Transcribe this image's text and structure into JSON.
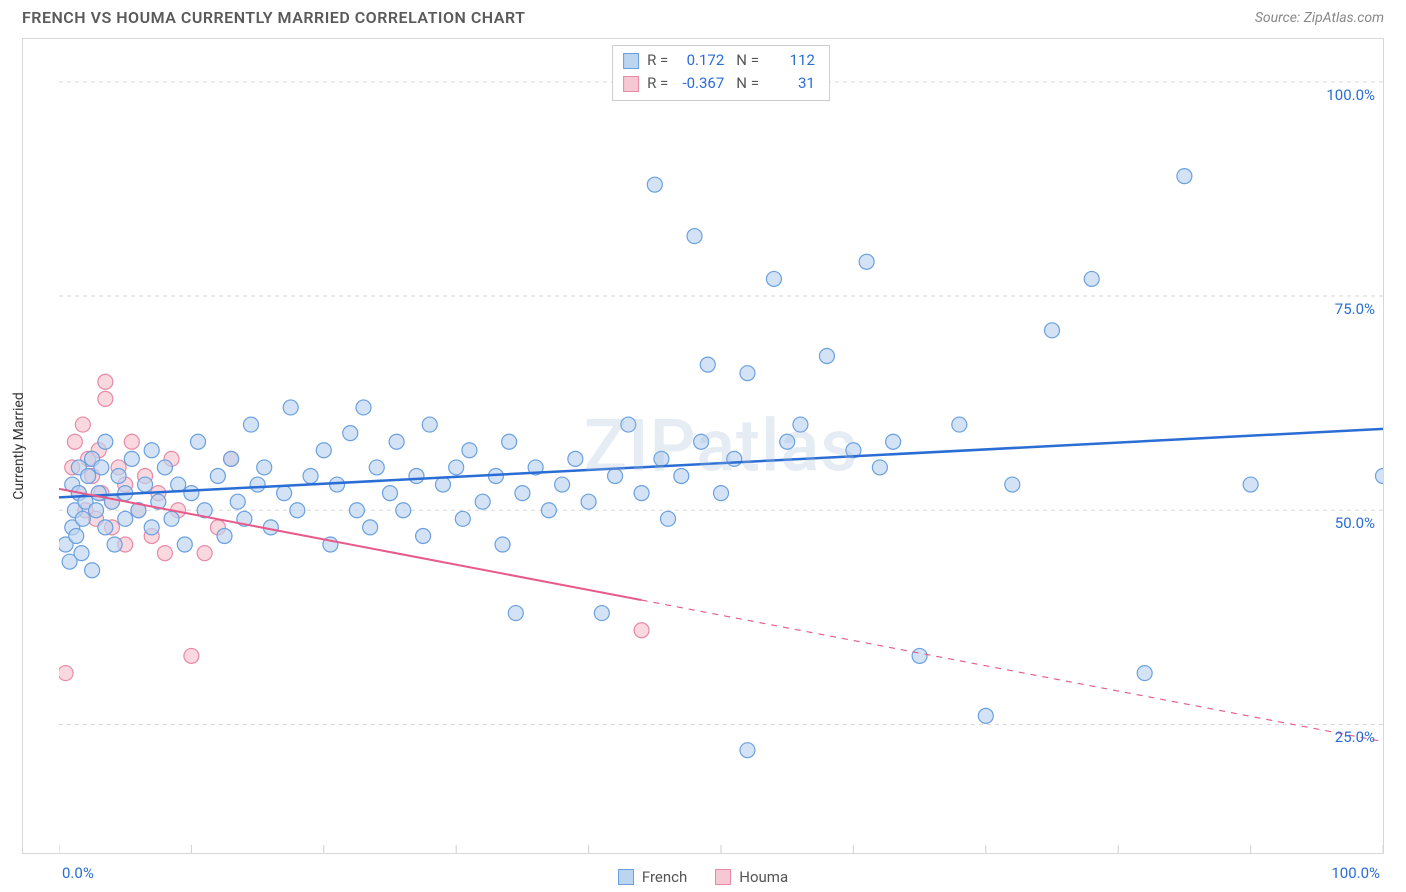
{
  "title": "FRENCH VS HOUMA CURRENTLY MARRIED CORRELATION CHART",
  "source": "Source: ZipAtlas.com",
  "watermark": "ZIPatlas",
  "ylabel": "Currently Married",
  "chart": {
    "type": "scatter",
    "background_color": "#ffffff",
    "grid_color": "#d8d8d8",
    "grid_dash": "4 4",
    "xlim": [
      0,
      100
    ],
    "ylim": [
      10,
      105
    ],
    "x_axis": {
      "start_label": "0.0%",
      "end_label": "100.0%",
      "tick_positions": [
        0,
        10,
        20,
        30,
        40,
        50,
        60,
        70,
        80,
        90,
        100
      ],
      "label_color": "#2a6dd4",
      "label_fontsize": 15
    },
    "y_axis": {
      "tick_positions": [
        25,
        50,
        75,
        100
      ],
      "tick_labels": [
        "25.0%",
        "50.0%",
        "75.0%",
        "100.0%"
      ],
      "label_color": "#2a6dd4",
      "label_fontsize": 15
    },
    "series": [
      {
        "name": "French",
        "marker_fill": "#bbd4f0",
        "marker_stroke": "#6aa0e0",
        "marker_opacity": 0.65,
        "marker_radius": 7.5,
        "line_color": "#2a6dd4",
        "line_width": 2.5,
        "regression": {
          "x1": 0,
          "y1": 51.5,
          "x2": 100,
          "y2": 59.5,
          "extrapolate_from_x": null
        },
        "stats": {
          "R": "0.172",
          "N": "112"
        },
        "points": [
          [
            0.5,
            46
          ],
          [
            0.8,
            44
          ],
          [
            1.0,
            53
          ],
          [
            1.0,
            48
          ],
          [
            1.2,
            50
          ],
          [
            1.3,
            47
          ],
          [
            1.5,
            52
          ],
          [
            1.5,
            55
          ],
          [
            1.7,
            45
          ],
          [
            1.8,
            49
          ],
          [
            2.0,
            51
          ],
          [
            2.2,
            54
          ],
          [
            2.5,
            43
          ],
          [
            2.5,
            56
          ],
          [
            2.8,
            50
          ],
          [
            3.0,
            52
          ],
          [
            3.2,
            55
          ],
          [
            3.5,
            48
          ],
          [
            3.5,
            58
          ],
          [
            4.0,
            51
          ],
          [
            4.2,
            46
          ],
          [
            4.5,
            54
          ],
          [
            5.0,
            52
          ],
          [
            5.0,
            49
          ],
          [
            5.5,
            56
          ],
          [
            6.0,
            50
          ],
          [
            6.5,
            53
          ],
          [
            7.0,
            48
          ],
          [
            7.0,
            57
          ],
          [
            7.5,
            51
          ],
          [
            8.0,
            55
          ],
          [
            8.5,
            49
          ],
          [
            9.0,
            53
          ],
          [
            9.5,
            46
          ],
          [
            10,
            52
          ],
          [
            10.5,
            58
          ],
          [
            11,
            50
          ],
          [
            12,
            54
          ],
          [
            12.5,
            47
          ],
          [
            13,
            56
          ],
          [
            13.5,
            51
          ],
          [
            14,
            49
          ],
          [
            14.5,
            60
          ],
          [
            15,
            53
          ],
          [
            15.5,
            55
          ],
          [
            16,
            48
          ],
          [
            17,
            52
          ],
          [
            17.5,
            62
          ],
          [
            18,
            50
          ],
          [
            19,
            54
          ],
          [
            20,
            57
          ],
          [
            20.5,
            46
          ],
          [
            21,
            53
          ],
          [
            22,
            59
          ],
          [
            22.5,
            50
          ],
          [
            23,
            62
          ],
          [
            23.5,
            48
          ],
          [
            24,
            55
          ],
          [
            25,
            52
          ],
          [
            25.5,
            58
          ],
          [
            26,
            50
          ],
          [
            27,
            54
          ],
          [
            27.5,
            47
          ],
          [
            28,
            60
          ],
          [
            29,
            53
          ],
          [
            30,
            55
          ],
          [
            30.5,
            49
          ],
          [
            31,
            57
          ],
          [
            32,
            51
          ],
          [
            33,
            54
          ],
          [
            33.5,
            46
          ],
          [
            34,
            58
          ],
          [
            34.5,
            38
          ],
          [
            35,
            52
          ],
          [
            36,
            55
          ],
          [
            37,
            50
          ],
          [
            38,
            53
          ],
          [
            39,
            56
          ],
          [
            40,
            51
          ],
          [
            41,
            38
          ],
          [
            42,
            54
          ],
          [
            43,
            60
          ],
          [
            44,
            52
          ],
          [
            45,
            88
          ],
          [
            45.5,
            56
          ],
          [
            46,
            49
          ],
          [
            47,
            54
          ],
          [
            48,
            82
          ],
          [
            48.5,
            58
          ],
          [
            49,
            67
          ],
          [
            50,
            52
          ],
          [
            51,
            56
          ],
          [
            52,
            66
          ],
          [
            52,
            22
          ],
          [
            54,
            77
          ],
          [
            55,
            58
          ],
          [
            56,
            60
          ],
          [
            58,
            68
          ],
          [
            60,
            57
          ],
          [
            61,
            79
          ],
          [
            62,
            55
          ],
          [
            63,
            58
          ],
          [
            65,
            33
          ],
          [
            68,
            60
          ],
          [
            70,
            26
          ],
          [
            72,
            53
          ],
          [
            75,
            71
          ],
          [
            78,
            77
          ],
          [
            82,
            31
          ],
          [
            85,
            89
          ],
          [
            90,
            53
          ],
          [
            100,
            54
          ]
        ]
      },
      {
        "name": "Houma",
        "marker_fill": "#f6c8d3",
        "marker_stroke": "#e88aa5",
        "marker_opacity": 0.7,
        "marker_radius": 7.5,
        "line_color": "#e85a8a",
        "line_width": 2,
        "regression": {
          "x1": 0,
          "y1": 52.5,
          "x2": 100,
          "y2": 23.0,
          "solid_until_x": 44
        },
        "stats": {
          "R": "-0.367",
          "N": "31"
        },
        "points": [
          [
            0.5,
            31
          ],
          [
            1.0,
            55
          ],
          [
            1.2,
            58
          ],
          [
            1.5,
            52
          ],
          [
            1.8,
            60
          ],
          [
            2.0,
            50
          ],
          [
            2.2,
            56
          ],
          [
            2.5,
            54
          ],
          [
            2.8,
            49
          ],
          [
            3.0,
            57
          ],
          [
            3.2,
            52
          ],
          [
            3.5,
            63
          ],
          [
            3.5,
            65
          ],
          [
            4.0,
            51
          ],
          [
            4.0,
            48
          ],
          [
            4.5,
            55
          ],
          [
            5.0,
            53
          ],
          [
            5.0,
            46
          ],
          [
            5.5,
            58
          ],
          [
            6.0,
            50
          ],
          [
            6.5,
            54
          ],
          [
            7.0,
            47
          ],
          [
            7.5,
            52
          ],
          [
            8.0,
            45
          ],
          [
            8.5,
            56
          ],
          [
            9.0,
            50
          ],
          [
            10,
            33
          ],
          [
            11,
            45
          ],
          [
            12,
            48
          ],
          [
            13,
            56
          ],
          [
            44,
            36
          ]
        ]
      }
    ],
    "legend_bottom": [
      {
        "label": "French",
        "fill": "#bbd4f0",
        "stroke": "#6aa0e0"
      },
      {
        "label": "Houma",
        "fill": "#f6c8d3",
        "stroke": "#e88aa5"
      }
    ]
  }
}
